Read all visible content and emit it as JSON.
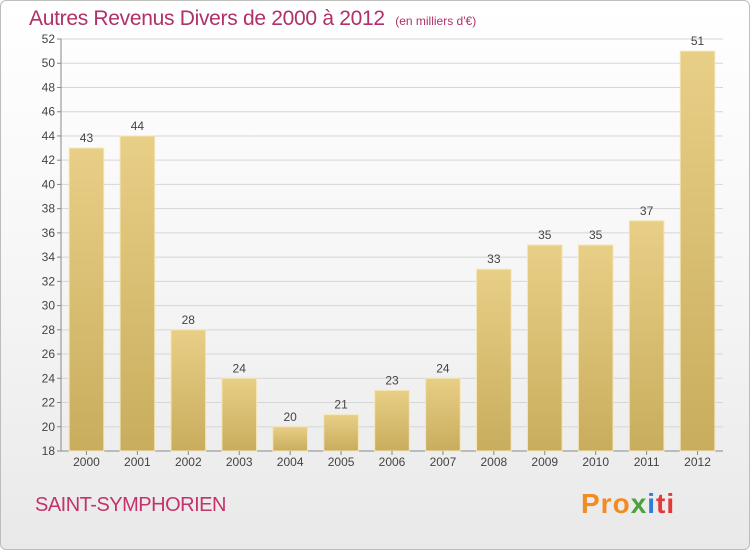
{
  "chart_data": {
    "type": "bar",
    "title": "Autres Revenus Divers de 2000 à 2012",
    "subtitle": "(en milliers d'€)",
    "categories": [
      "2000",
      "2001",
      "2002",
      "2003",
      "2004",
      "2005",
      "2006",
      "2007",
      "2008",
      "2009",
      "2010",
      "2011",
      "2012"
    ],
    "values": [
      43,
      44,
      28,
      24,
      20,
      21,
      23,
      24,
      33,
      35,
      35,
      37,
      51
    ],
    "ylim": [
      18,
      52
    ],
    "yticks": [
      18,
      20,
      22,
      24,
      26,
      28,
      30,
      32,
      34,
      36,
      38,
      40,
      42,
      44,
      46,
      48,
      50,
      52
    ],
    "grid": true,
    "bar_color": "#e8cf86",
    "bar_color_dark": "#c9ad5e"
  },
  "footer": {
    "location": "SAINT-SYMPHORIEN",
    "logo_parts": [
      "Pro",
      "x",
      "i",
      "ti"
    ]
  }
}
